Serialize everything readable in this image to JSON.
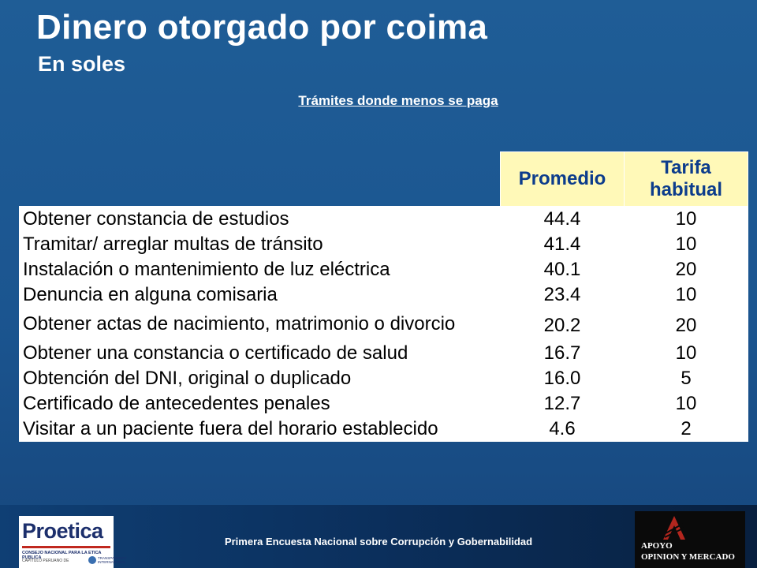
{
  "header": {
    "title": "Dinero otorgado por coima",
    "subtitle": "En soles"
  },
  "table": {
    "caption": "Trámites donde menos se paga",
    "columns": [
      "Promedio",
      "Tarifa habitual"
    ],
    "rows": [
      {
        "label": "Obtener constancia de estudios",
        "promedio": "44.4",
        "tarifa": "10"
      },
      {
        "label": "Tramitar/ arreglar multas de tránsito",
        "promedio": "41.4",
        "tarifa": "10"
      },
      {
        "label": "Instalación o mantenimiento de luz eléctrica",
        "promedio": "40.1",
        "tarifa": "20"
      },
      {
        "label": "Denuncia en alguna comisaria",
        "promedio": "23.4",
        "tarifa": "10"
      },
      {
        "label": "Obtener actas de nacimiento, matrimonio o divorcio",
        "promedio": "20.2",
        "tarifa": "20"
      },
      {
        "label": "Obtener una constancia o certificado de salud",
        "promedio": "16.7",
        "tarifa": "10"
      },
      {
        "label": "Obtención del DNI, original o duplicado",
        "promedio": "16.0",
        "tarifa": "5"
      },
      {
        "label": "Certificado de antecedentes penales",
        "promedio": "12.7",
        "tarifa": "10"
      },
      {
        "label": "Visitar a un paciente fuera del horario establecido",
        "promedio": "4.6",
        "tarifa": "2"
      }
    ]
  },
  "footer": {
    "text": "Primera Encuesta Nacional sobre Corrupción y Gobernabilidad",
    "logo_left": {
      "name": "Proetica",
      "line1": "CONSEJO NACIONAL PARA LA ETICA PUBLICA",
      "line2": "CAPITULO PERUANO DE",
      "line3": "TRANSPARENCY INTERNATIONAL"
    },
    "logo_right": {
      "line1": "APOYO",
      "line2": "OPINION Y MERCADO"
    }
  },
  "colors": {
    "background": "#1b5590",
    "header_cell": "#fff9b8",
    "header_text": "#0c3c8c"
  }
}
